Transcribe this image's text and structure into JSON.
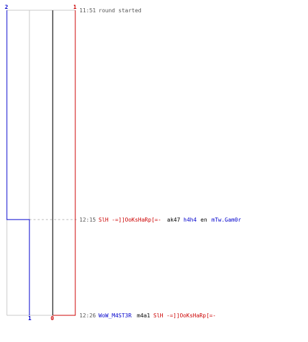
{
  "colors": {
    "team_blue": "#0000cc",
    "team_red": "#cc0000",
    "neutral_gray": "#555555",
    "grid_line": "#c8c8c8",
    "dashed_guide": "#bbbbbb",
    "center_line": "#707070",
    "text_default": "#000000"
  },
  "top_labels": {
    "blue": "2",
    "red": "1"
  },
  "bottom_labels": {
    "blue": "1",
    "red": "0"
  },
  "events": [
    {
      "time": "11:51",
      "parts": [
        {
          "text": "round started",
          "color": "#555555"
        }
      ]
    },
    {
      "time": "12:15",
      "parts": [
        {
          "text": "SlH -=]]OoKsHaRp[=-",
          "color": "#cc0000"
        },
        {
          "text": "ak47",
          "color": "#000000"
        },
        {
          "text": "h4h4",
          "color": "#0000cc"
        },
        {
          "text": "en",
          "color": "#000000"
        },
        {
          "text": "mTw.Gam0r",
          "color": "#0000cc"
        }
      ]
    },
    {
      "time": "12:26",
      "parts": [
        {
          "text": "WoW_M4ST3R",
          "color": "#0000cc"
        },
        {
          "text": "m4a1",
          "color": "#000000"
        },
        {
          "text": "SlH -=]]OoKsHaRp[=-",
          "color": "#cc0000"
        }
      ]
    }
  ]
}
